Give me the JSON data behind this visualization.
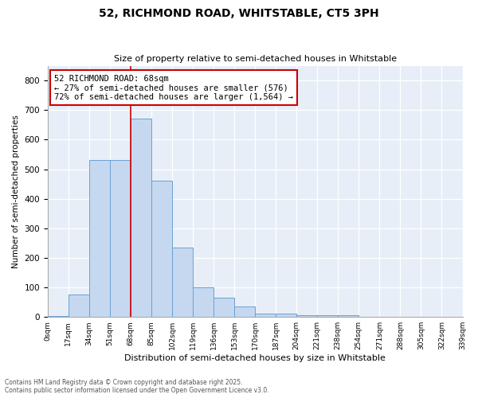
{
  "title1": "52, RICHMOND ROAD, WHITSTABLE, CT5 3PH",
  "title2": "Size of property relative to semi-detached houses in Whitstable",
  "xlabel": "Distribution of semi-detached houses by size in Whitstable",
  "ylabel": "Number of semi-detached properties",
  "footer1": "Contains HM Land Registry data © Crown copyright and database right 2025.",
  "footer2": "Contains public sector information licensed under the Open Government Licence v3.0.",
  "annotation_title": "52 RICHMOND ROAD: 68sqm",
  "annotation_line1": "← 27% of semi-detached houses are smaller (576)",
  "annotation_line2": "72% of semi-detached houses are larger (1,564) →",
  "bar_color": "#c5d8f0",
  "bar_edge_color": "#6aa0d4",
  "vline_color": "#cc0000",
  "annotation_box_edge_color": "#cc0000",
  "background_color": "#e8eef7",
  "bin_labels": [
    "0sqm",
    "17sqm",
    "34sqm",
    "51sqm",
    "68sqm",
    "85sqm",
    "102sqm",
    "119sqm",
    "136sqm",
    "153sqm",
    "170sqm",
    "187sqm",
    "204sqm",
    "221sqm",
    "238sqm",
    "254sqm",
    "271sqm",
    "288sqm",
    "305sqm",
    "322sqm",
    "339sqm"
  ],
  "bar_values": [
    3,
    75,
    530,
    530,
    670,
    460,
    235,
    100,
    65,
    35,
    10,
    10,
    5,
    5,
    5,
    0,
    0,
    0,
    0,
    0
  ],
  "vline_x": 4,
  "ylim": [
    0,
    850
  ],
  "yticks": [
    0,
    100,
    200,
    300,
    400,
    500,
    600,
    700,
    800
  ]
}
